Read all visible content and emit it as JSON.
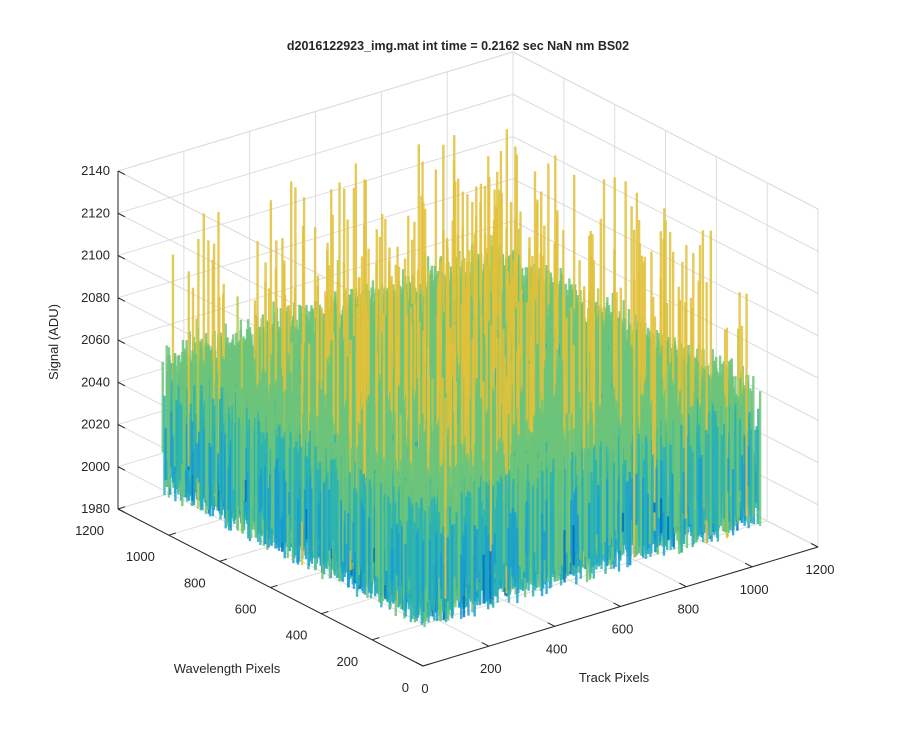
{
  "chart_data": {
    "type": "surface",
    "title": "d2016122923_img.mat int time = 0.2162 sec  NaN nm BS02",
    "xlabel": "Track Pixels",
    "ylabel": "Wavelength Pixels",
    "zlabel": "Signal (ADU)",
    "x_ticks": [
      0,
      200,
      400,
      600,
      800,
      1000,
      1200
    ],
    "y_ticks": [
      0,
      200,
      400,
      600,
      800,
      1000,
      1200
    ],
    "z_ticks": [
      1980,
      2000,
      2020,
      2040,
      2060,
      2080,
      2100,
      2120,
      2140
    ],
    "xlim": [
      0,
      1200
    ],
    "ylim": [
      0,
      1200
    ],
    "zlim": [
      1980,
      2140
    ],
    "data_extent": {
      "x": [
        0,
        1024
      ],
      "y": [
        0,
        1024
      ]
    },
    "signal_typical_range": [
      2010,
      2070
    ],
    "signal_mean": 2038,
    "signal_peak": 2133,
    "grid": true,
    "colormap": [
      "#0072bd",
      "#1a9fd0",
      "#2bb3b1",
      "#6cc47a",
      "#b7c84e",
      "#e2c13a"
    ]
  }
}
